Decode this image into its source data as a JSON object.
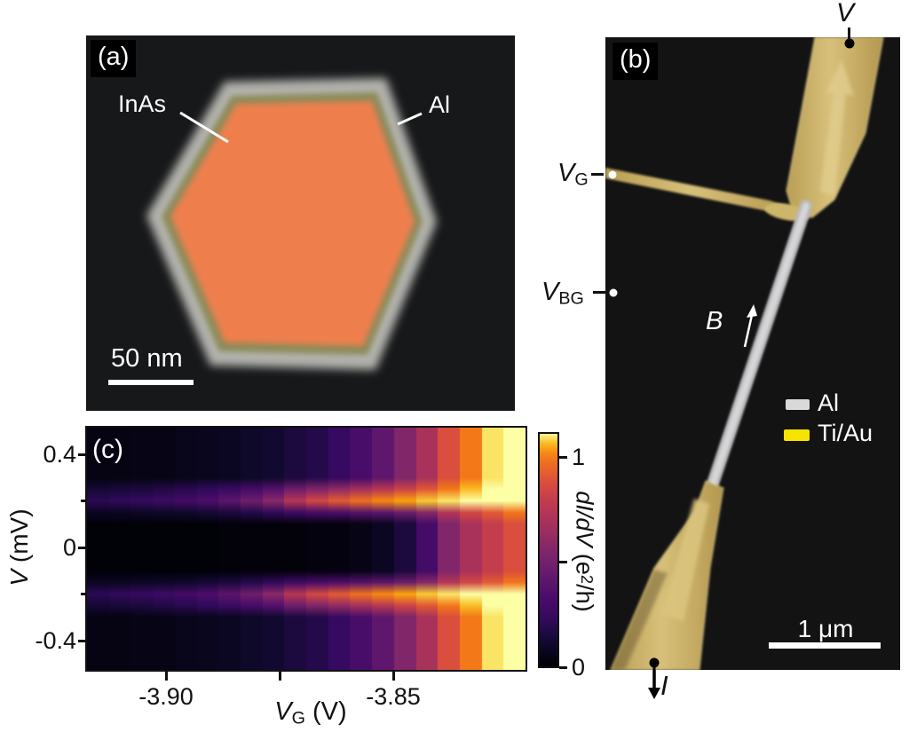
{
  "panel_a": {
    "tag": "(a)",
    "core_label": "InAs",
    "shell_label": "Al",
    "scalebar_label": "50 nm",
    "colors": {
      "bg": "#17181a",
      "shell": "#b3b3ae",
      "ring": "#8a8a58",
      "core": "#ee7f4e"
    }
  },
  "panel_b": {
    "tag": "(b)",
    "bias_label": "V",
    "gate_label": {
      "var": "V",
      "sub": "G"
    },
    "backgate_label": {
      "var": "V",
      "sub": "BG"
    },
    "field_label": "B",
    "current_label": "I",
    "scalebar_label": "1 μm",
    "legend": [
      {
        "label": "Al",
        "color": "#d9d9d9"
      },
      {
        "label": "Ti/Au",
        "color": "#f7e300"
      }
    ],
    "colors": {
      "bg": "#131313",
      "gold": "#c7ae66",
      "gold_light": "#e2cf90",
      "wire": "#c9c9cb"
    }
  },
  "panel_c": {
    "tag": "(c)",
    "ylabel": {
      "var": "V",
      "rest": " (mV)"
    },
    "xlabel": {
      "var": "V",
      "sub": "G",
      "rest": " (V)"
    },
    "colorbar_label": {
      "pre_italic": "dI/dV",
      "mid": " (e",
      "sup": "2",
      "post": "/h)"
    }
  },
  "chart_data": {
    "type": "heatmap",
    "title": "",
    "xlabel": "V_G (V)",
    "ylabel": "V (mV)",
    "colorbar_label": "dI/dV (e^2/h)",
    "xlim": [
      -3.9174,
      -3.8209
    ],
    "ylim": [
      -0.52,
      0.52
    ],
    "x_ticks": [
      -3.9,
      -3.85
    ],
    "x_tick_labels": [
      "-3.90",
      "-3.85"
    ],
    "x_minor_ticks": [
      -3.875
    ],
    "y_ticks": [
      0.4,
      0,
      -0.4
    ],
    "y_tick_labels": [
      "0.4",
      "0",
      "-0.4"
    ],
    "y_minor_ticks": [
      0.2,
      -0.2
    ],
    "colorbar": {
      "ticks": [
        1,
        0.5,
        0
      ],
      "tick_labels": [
        "1",
        "",
        "0"
      ],
      "vmax": 1.12,
      "colormap": "inferno-like",
      "stops": [
        [
          0.0,
          "#000004"
        ],
        [
          0.1,
          "#10092d"
        ],
        [
          0.2,
          "#320a5e"
        ],
        [
          0.3,
          "#4c0c6b"
        ],
        [
          0.4,
          "#661b6d"
        ],
        [
          0.5,
          "#832769"
        ],
        [
          0.6,
          "#a2305e"
        ],
        [
          0.7,
          "#c03a50"
        ],
        [
          0.78,
          "#d84c3e"
        ],
        [
          0.85,
          "#ea642a"
        ],
        [
          0.9,
          "#f57d15"
        ],
        [
          0.94,
          "#fba40a"
        ],
        [
          0.97,
          "#f9d23c"
        ],
        [
          1.0,
          "#fcffa4"
        ]
      ]
    },
    "x": [
      -3.915,
      -3.9102,
      -3.9054,
      -3.9005,
      -3.8957,
      -3.8909,
      -3.8861,
      -3.8812,
      -3.8764,
      -3.8716,
      -3.8668,
      -3.8619,
      -3.8571,
      -3.8523,
      -3.8475,
      -3.8426,
      -3.8378,
      -3.833,
      -3.8282,
      -3.8233
    ],
    "y_rows": [
      0.5,
      0.45,
      0.4,
      0.35,
      0.3,
      0.25,
      0.2,
      0.15,
      0.1,
      0.05,
      0,
      -0.05,
      -0.1,
      -0.15,
      -0.2,
      -0.25,
      -0.3,
      -0.35,
      -0.4,
      -0.45,
      -0.5
    ],
    "columns_didv": [
      [
        0.04,
        0.04,
        0.04,
        0.04,
        0.04,
        0.13,
        0.2,
        0.08,
        0.01,
        0.01,
        0.01,
        0.01,
        0.01,
        0.08,
        0.2,
        0.13,
        0.04,
        0.04,
        0.04,
        0.04,
        0.04
      ],
      [
        0.04,
        0.04,
        0.04,
        0.04,
        0.04,
        0.14,
        0.22,
        0.08,
        0.01,
        0.01,
        0.01,
        0.01,
        0.01,
        0.08,
        0.22,
        0.14,
        0.04,
        0.04,
        0.04,
        0.04,
        0.04
      ],
      [
        0.05,
        0.05,
        0.05,
        0.05,
        0.05,
        0.15,
        0.24,
        0.09,
        0.01,
        0.01,
        0.01,
        0.01,
        0.01,
        0.09,
        0.24,
        0.15,
        0.05,
        0.05,
        0.05,
        0.05,
        0.05
      ],
      [
        0.05,
        0.05,
        0.05,
        0.05,
        0.05,
        0.17,
        0.27,
        0.1,
        0.01,
        0.01,
        0.01,
        0.01,
        0.01,
        0.1,
        0.27,
        0.17,
        0.05,
        0.05,
        0.05,
        0.05,
        0.05
      ],
      [
        0.06,
        0.06,
        0.06,
        0.06,
        0.06,
        0.19,
        0.3,
        0.11,
        0.01,
        0.01,
        0.01,
        0.01,
        0.01,
        0.11,
        0.3,
        0.19,
        0.06,
        0.06,
        0.06,
        0.06,
        0.06
      ],
      [
        0.07,
        0.07,
        0.07,
        0.07,
        0.07,
        0.22,
        0.34,
        0.13,
        0.01,
        0.01,
        0.01,
        0.01,
        0.01,
        0.13,
        0.34,
        0.22,
        0.07,
        0.07,
        0.07,
        0.07,
        0.07
      ],
      [
        0.08,
        0.08,
        0.08,
        0.08,
        0.08,
        0.26,
        0.4,
        0.15,
        0.02,
        0.02,
        0.02,
        0.02,
        0.02,
        0.15,
        0.4,
        0.26,
        0.08,
        0.08,
        0.08,
        0.08,
        0.08
      ],
      [
        0.1,
        0.1,
        0.1,
        0.1,
        0.1,
        0.31,
        0.48,
        0.18,
        0.02,
        0.02,
        0.02,
        0.02,
        0.02,
        0.18,
        0.48,
        0.31,
        0.1,
        0.1,
        0.1,
        0.1,
        0.1
      ],
      [
        0.12,
        0.12,
        0.12,
        0.12,
        0.12,
        0.37,
        0.58,
        0.22,
        0.02,
        0.02,
        0.02,
        0.02,
        0.02,
        0.22,
        0.58,
        0.37,
        0.12,
        0.12,
        0.12,
        0.12,
        0.12
      ],
      [
        0.15,
        0.15,
        0.15,
        0.15,
        0.15,
        0.48,
        0.75,
        0.28,
        0.02,
        0.02,
        0.02,
        0.02,
        0.02,
        0.28,
        0.75,
        0.48,
        0.15,
        0.15,
        0.15,
        0.15,
        0.15
      ],
      [
        0.18,
        0.18,
        0.18,
        0.18,
        0.18,
        0.55,
        0.85,
        0.32,
        0.03,
        0.03,
        0.03,
        0.03,
        0.03,
        0.32,
        0.85,
        0.55,
        0.18,
        0.18,
        0.18,
        0.18,
        0.18
      ],
      [
        0.24,
        0.24,
        0.24,
        0.24,
        0.24,
        0.61,
        0.92,
        0.34,
        0.03,
        0.03,
        0.03,
        0.03,
        0.03,
        0.34,
        0.92,
        0.61,
        0.24,
        0.24,
        0.24,
        0.24,
        0.24
      ],
      [
        0.32,
        0.32,
        0.32,
        0.32,
        0.32,
        0.68,
        0.98,
        0.38,
        0.05,
        0.05,
        0.05,
        0.05,
        0.05,
        0.38,
        0.98,
        0.68,
        0.32,
        0.32,
        0.32,
        0.32,
        0.32
      ],
      [
        0.42,
        0.42,
        0.42,
        0.42,
        0.42,
        0.75,
        1.02,
        0.41,
        0.08,
        0.08,
        0.08,
        0.08,
        0.08,
        0.41,
        1.02,
        0.75,
        0.42,
        0.42,
        0.42,
        0.42,
        0.42
      ],
      [
        0.55,
        0.55,
        0.55,
        0.55,
        0.55,
        0.83,
        1.05,
        0.47,
        0.15,
        0.15,
        0.15,
        0.15,
        0.15,
        0.47,
        1.05,
        0.83,
        0.55,
        0.55,
        0.55,
        0.55,
        0.55
      ],
      [
        0.7,
        0.7,
        0.7,
        0.7,
        0.7,
        0.91,
        1.08,
        0.57,
        0.3,
        0.3,
        0.3,
        0.3,
        0.3,
        0.57,
        1.08,
        0.91,
        0.7,
        0.7,
        0.7,
        0.7,
        0.7
      ],
      [
        0.88,
        0.88,
        0.88,
        0.88,
        0.88,
        1.0,
        1.1,
        0.74,
        0.55,
        0.55,
        0.55,
        0.55,
        0.55,
        0.74,
        1.1,
        1.0,
        0.88,
        0.88,
        0.88,
        0.88,
        0.88
      ],
      [
        1.0,
        1.0,
        1.0,
        1.0,
        1.0,
        1.07,
        1.12,
        0.85,
        0.7,
        0.7,
        0.7,
        0.7,
        0.7,
        0.85,
        1.12,
        1.07,
        1.0,
        1.0,
        1.0,
        1.0,
        1.0
      ],
      [
        1.1,
        1.1,
        1.1,
        1.1,
        1.1,
        1.13,
        1.15,
        0.92,
        0.8,
        0.8,
        0.8,
        0.8,
        0.8,
        0.92,
        1.15,
        1.13,
        1.1,
        1.1,
        1.1,
        1.1,
        1.1
      ],
      [
        1.18,
        1.18,
        1.18,
        1.18,
        1.18,
        1.18,
        1.18,
        0.99,
        0.88,
        0.88,
        0.88,
        0.88,
        0.88,
        0.99,
        1.18,
        1.18,
        1.18,
        1.18,
        1.18,
        1.18,
        1.18
      ]
    ]
  }
}
